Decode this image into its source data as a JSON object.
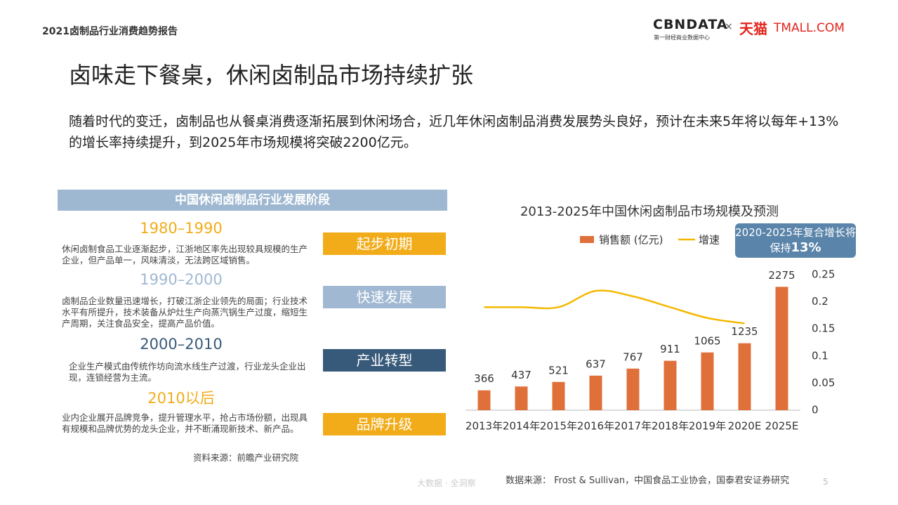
{
  "header": {
    "report": "2021卤制品行业消费趋势报告",
    "logo_main": "CBNDATA",
    "logo_sub": "第一财经商业数据中心",
    "logo_times": "×",
    "logo_tmall_cn": "天猫",
    "logo_tmall_en": "TMALL.COM"
  },
  "title": "卤味走下餐桌，休闲卤制品市场持续扩张",
  "intro": "随着时代的变迁，卤制品也从餐桌消费逐渐拓展到休闲场合，近几年休闲卤制品消费发展势头良好，预计在未来5年将以每年+13%的增长率持续提升，到2025年市场规模将突破2200亿元。",
  "stages_panel": {
    "heading": "中国休闲卤制品行业发展阶段",
    "stages": [
      {
        "period": "1980–1990",
        "description": "休闲卤制食品工业逐渐起步，江浙地区率先出现较具规模的生产企业，但产品单一，风味清淡，无法跨区域销售。",
        "label": "起步初期",
        "color": "#f2ac1a"
      },
      {
        "period": "1990–2000",
        "description": "卤制品企业数量迅速增长，打破江浙企业领先的局面；行业技术水平有所提升，技术装备从炉灶生产向蒸汽锅生产过度，缩短生产周期，关注食品安全，提高产品价值。",
        "label": "快速发展",
        "color": "#a0b8d2"
      },
      {
        "period": "2000–2010",
        "description": "企业生产模式由传统作坊向流水线生产过渡，行业龙头企业出现，连锁经营为主流。",
        "label": "产业转型",
        "color": "#385a7a"
      },
      {
        "period": "2010以后",
        "description": "业内企业展开品牌竞争，提升管理水平，抢占市场份额，出现具有规模和品牌优势的龙头企业，并不断涌现新技术、新产品。",
        "label": "品牌升级",
        "color": "#f2ac1a"
      }
    ],
    "source": "资料来源：前瞻产业研究院"
  },
  "chart_data": {
    "type": "bar-line",
    "title": "2013-2025年中国休闲卤制品市场规模及预测",
    "categories": [
      "2013年",
      "2014年",
      "2015年",
      "2016年",
      "2017年",
      "2018年",
      "2019年",
      "2020E",
      "2025E"
    ],
    "series": [
      {
        "name": "销售额 (亿元)",
        "color": "#e0703a",
        "values": [
          366,
          437,
          521,
          637,
          767,
          911,
          1065,
          1235,
          2275
        ]
      },
      {
        "name": "增速",
        "color": "#f5b800",
        "axis": "y2",
        "values": [
          0.19,
          0.19,
          0.19,
          0.22,
          0.21,
          0.19,
          0.17,
          0.16,
          null
        ]
      }
    ],
    "ylim": [
      0,
      2500
    ],
    "y2lim": [
      0,
      0.25
    ],
    "y2ticks": [
      0,
      0.05,
      0.1,
      0.15,
      0.2,
      0.25
    ],
    "callout": {
      "text": "2020-2025年复合增长将保持",
      "highlight": "13%"
    },
    "source": "数据来源： Frost & Sullivan，中国食品工业协会，国泰君安证券研究"
  },
  "footer": {
    "slogan": "大数据 · 全洞察",
    "page": "5"
  }
}
